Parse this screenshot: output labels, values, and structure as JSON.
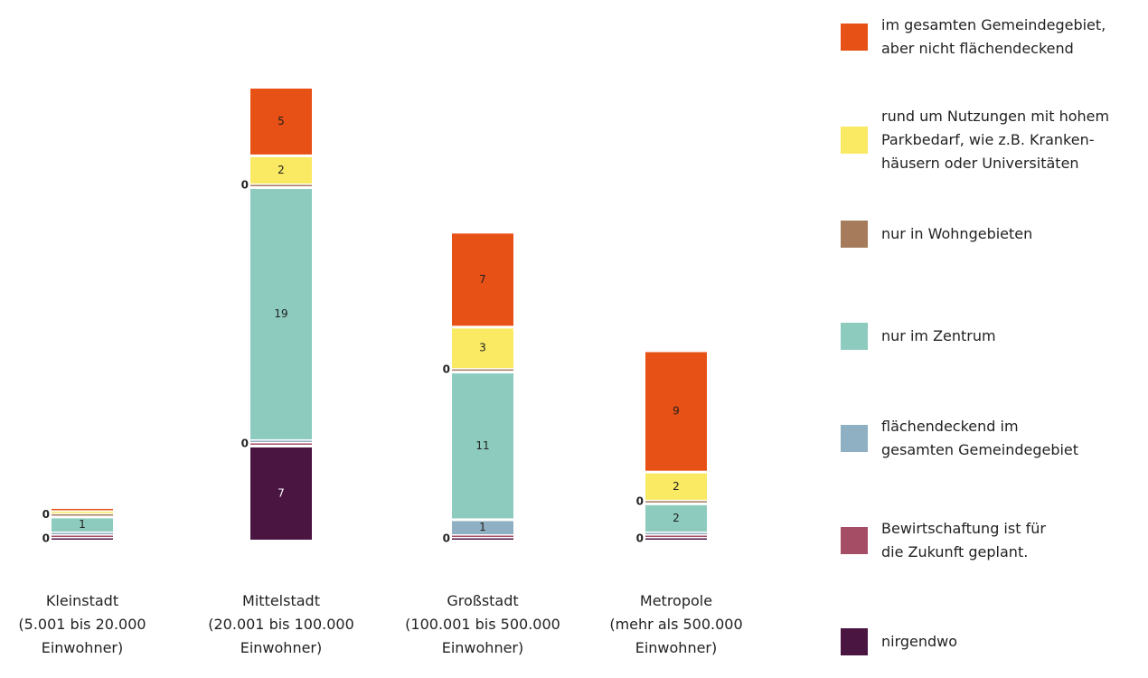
{
  "chart_data": {
    "type": "stacked-bar",
    "categories": [
      "Kleinstadt\n(5.001 bis 20.000\nEinwohner)",
      "Mittelstadt\n(20.001 bis 100.000\nEinwohner)",
      "Großstadt\n(100.001 bis 500.000\nEinwohner)",
      "Metropole\n(mehr als 500.000\nEinwohner)"
    ],
    "series": [
      {
        "name": "nirgendwo",
        "color": "#4a1540",
        "values": [
          0,
          7,
          0,
          0
        ]
      },
      {
        "name": "Bewirtschaftung ist für\ndie Zukunft geplant.",
        "color": "#a64d66",
        "values": [
          0,
          0,
          0,
          0
        ]
      },
      {
        "name": "flächendeckend im\ngesamten Gemeindegebiet",
        "color": "#8fb0c2",
        "values": [
          0,
          0,
          1,
          0
        ]
      },
      {
        "name": "nur im Zentrum",
        "color": "#8ccbbe",
        "values": [
          1,
          19,
          11,
          2
        ]
      },
      {
        "name": "nur in Wohngebieten",
        "color": "#a67b5b",
        "values": [
          0,
          0,
          0,
          0
        ]
      },
      {
        "name": "rund um Nutzungen mit hohem\nParkbedarf, wie z.B. Kranken-\nhäusern oder Universitäten",
        "color": "#f9e963",
        "values": [
          0,
          2,
          3,
          2
        ]
      },
      {
        "name": "im gesamten Gemeindegebiet,\naber nicht flächendeckend",
        "color": "#e85115",
        "values": [
          0,
          5,
          7,
          9
        ]
      }
    ],
    "ylim": [
      0,
      33
    ]
  }
}
